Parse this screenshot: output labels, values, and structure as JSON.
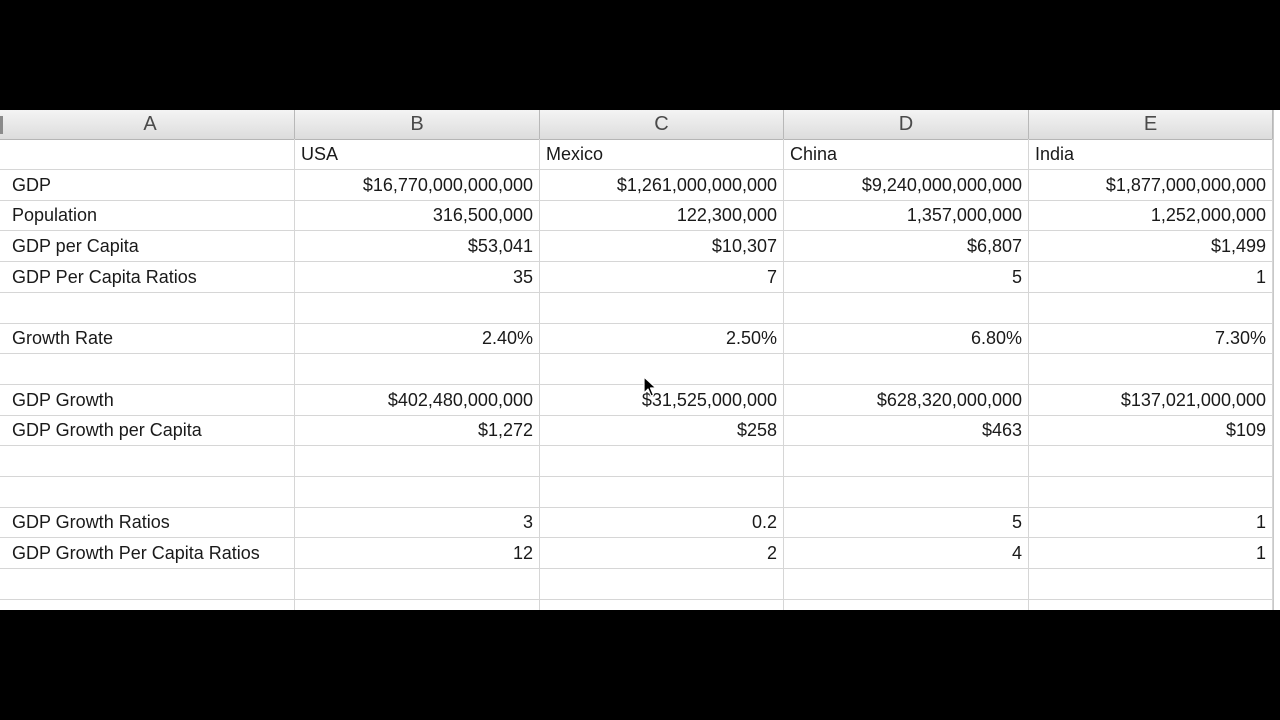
{
  "columns": [
    "A",
    "B",
    "C",
    "D",
    "E"
  ],
  "rows": [
    [
      "",
      "USA",
      "Mexico",
      "China",
      "India"
    ],
    [
      "GDP",
      "$16,770,000,000,000",
      "$1,261,000,000,000",
      "$9,240,000,000,000",
      "$1,877,000,000,000"
    ],
    [
      "Population",
      "316,500,000",
      "122,300,000",
      "1,357,000,000",
      "1,252,000,000"
    ],
    [
      "GDP per Capita",
      "$53,041",
      "$10,307",
      "$6,807",
      "$1,499"
    ],
    [
      "GDP Per Capita Ratios",
      "35",
      "7",
      "5",
      "1"
    ],
    [
      "",
      "",
      "",
      "",
      ""
    ],
    [
      "Growth Rate",
      "2.40%",
      "2.50%",
      "6.80%",
      "7.30%"
    ],
    [
      "",
      "",
      "",
      "",
      ""
    ],
    [
      "GDP Growth",
      "$402,480,000,000",
      "$31,525,000,000",
      "$628,320,000,000",
      "$137,021,000,000"
    ],
    [
      "GDP Growth per Capita",
      "$1,272",
      "$258",
      "$463",
      "$109"
    ],
    [
      "",
      "",
      "",
      "",
      ""
    ],
    [
      "",
      "",
      "",
      "",
      ""
    ],
    [
      "GDP Growth Ratios",
      "3",
      "0.2",
      "5",
      "1"
    ],
    [
      "GDP Growth Per Capita Ratios",
      "12",
      "2",
      "4",
      "1"
    ],
    [
      "",
      "",
      "",
      "",
      ""
    ],
    [
      "",
      "",
      "",
      "",
      ""
    ]
  ]
}
